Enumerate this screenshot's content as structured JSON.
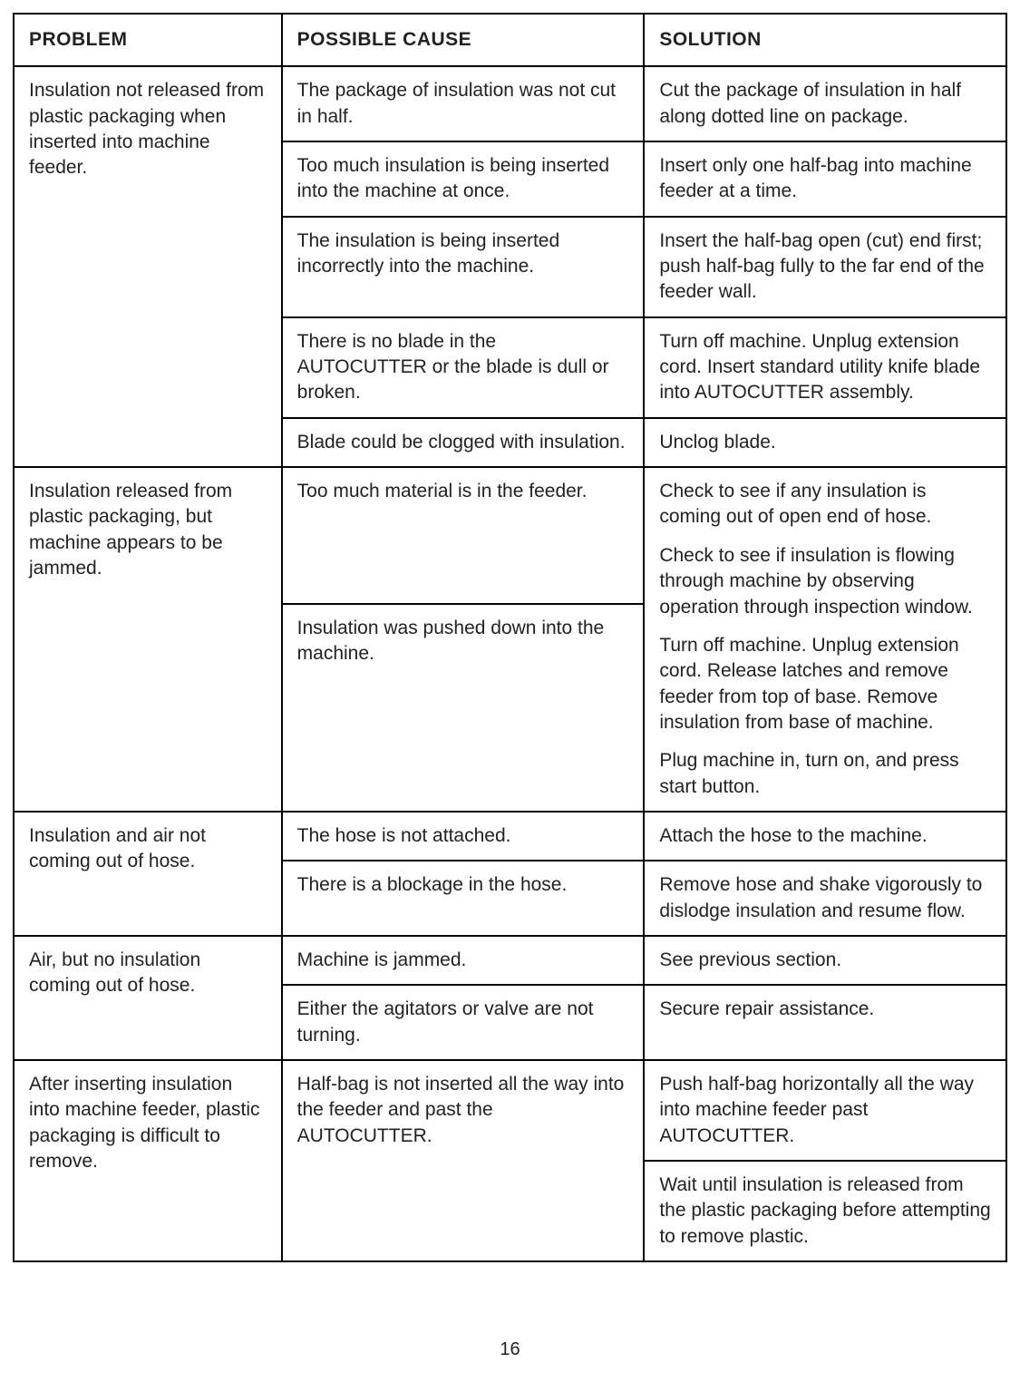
{
  "headers": {
    "problem": "PROBLEM",
    "cause": "POSSIBLE CAUSE",
    "solution": "SOLUTION"
  },
  "groups": [
    {
      "problem": "Insulation not released from plastic packaging when inserted into machine feeder.",
      "rows": [
        {
          "cause": "The package of insulation was not cut in half.",
          "solution": "Cut the package of insulation in half along dotted line on package."
        },
        {
          "cause": "Too much insulation is being inserted into the machine at once.",
          "solution": "Insert only one half-bag into machine feeder at a time."
        },
        {
          "cause": "The insulation is being inserted incorrectly into the machine.",
          "solution": "Insert the half-bag open (cut) end first; push half-bag fully to the far end of the feeder wall."
        },
        {
          "cause": "There is no blade in the AUTOCUTTER or the blade is dull or broken.",
          "solution": "Turn off machine. Unplug extension cord. Insert standard utility knife blade into AUTOCUTTER assembly."
        },
        {
          "cause": "Blade could be clogged with insulation.",
          "solution": "Unclog blade."
        }
      ]
    },
    {
      "problem": "Insulation released from plastic packaging, but machine appears to be jammed.",
      "merged_solution": [
        "Check to see if any insulation is coming out of open end of hose.",
        "Check to see if insulation is flowing through machine by observing operation through inspection window.",
        "Turn off machine. Unplug extension cord. Release latches and remove feeder from top of base. Remove insulation from base of machine.",
        "Plug machine in, turn on, and press start button."
      ],
      "causes": [
        "Too much material is in the feeder.",
        "Insulation was pushed down into the machine."
      ]
    },
    {
      "problem": "Insulation and air not coming out of hose.",
      "rows": [
        {
          "cause": "The hose is not attached.",
          "solution": "Attach the hose to the machine."
        },
        {
          "cause": "There is a blockage in the hose.",
          "solution": "Remove hose and shake vigorously to dislodge insulation and resume flow."
        }
      ]
    },
    {
      "problem": "Air, but no insulation coming out of hose.",
      "rows": [
        {
          "cause": "Machine is jammed.",
          "solution": "See previous section."
        },
        {
          "cause": "Either the agitators or valve are not turning.",
          "solution": "Secure repair assistance."
        }
      ]
    },
    {
      "problem": "After inserting insulation into machine feeder, plastic packaging is difficult to remove.",
      "merged_cause": "Half-bag is not inserted all the way into the feeder and past the AUTOCUTTER.",
      "solutions": [
        "Push half-bag horizontally all the way into machine feeder past AUTOCUTTER.",
        "Wait until insulation is released from the plastic packaging before attempting to remove plastic."
      ]
    }
  ],
  "page_number": "16"
}
